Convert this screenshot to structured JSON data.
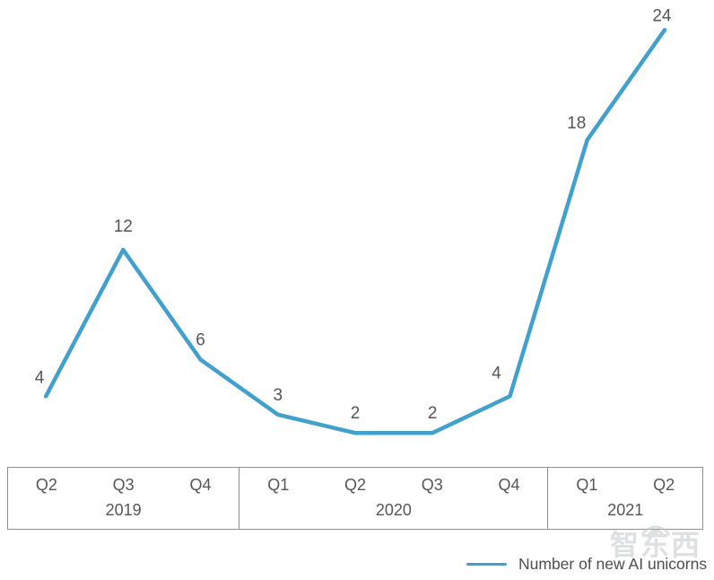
{
  "chart_data": {
    "type": "line",
    "title": "",
    "xlabel": "",
    "ylabel": "",
    "categories": [
      "Q2 2019",
      "Q3 2019",
      "Q4 2019",
      "Q1 2020",
      "Q2 2020",
      "Q3 2020",
      "Q4 2020",
      "Q1 2021",
      "Q2 2021"
    ],
    "values": [
      4,
      12,
      6,
      3,
      2,
      2,
      4,
      18,
      24
    ],
    "point_labels": [
      "4",
      "12",
      "6",
      "3",
      "2",
      "2",
      "4",
      "18",
      "24"
    ],
    "series": [
      {
        "name": "Number of new AI unicorns",
        "values": [
          4,
          12,
          6,
          3,
          2,
          2,
          4,
          18,
          24
        ]
      }
    ],
    "ylim": [
      0,
      24
    ],
    "grid": false,
    "markers": false,
    "legend_position": "bottom-right",
    "line_color": "#41A0CC",
    "label_color": "#54555A",
    "axis": {
      "sections": [
        {
          "year": "2019",
          "quarters": [
            "Q2",
            "Q3",
            "Q4"
          ]
        },
        {
          "year": "2020",
          "quarters": [
            "Q1",
            "Q2",
            "Q3",
            "Q4"
          ]
        },
        {
          "year": "2021",
          "quarters": [
            "Q1",
            "Q2"
          ]
        }
      ],
      "border_color": "#8E8E91",
      "text_color": "#55565B"
    }
  },
  "legend": {
    "label": "Number of new AI unicorns"
  },
  "watermark": {
    "text": "智东西"
  }
}
